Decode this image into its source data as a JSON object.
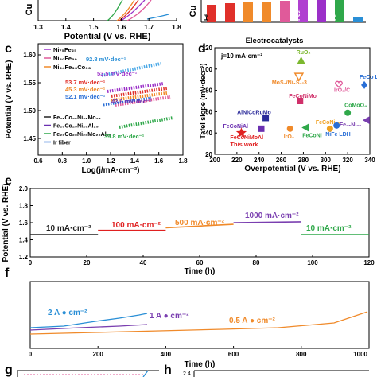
{
  "panels": {
    "a": {
      "ylabel": "Cu",
      "xlabel": "Potential (V vs. RHE)",
      "xticks": [
        "1.3",
        "1.4",
        "1.5",
        "1.6",
        "1.7",
        "1.8"
      ]
    },
    "b": {
      "ylabel": "Cu",
      "bar_labels": [
        "Fe",
        "Fe₂",
        "Fe"
      ]
    },
    "c": {
      "letter": "c",
      "ylabel": "Potential (V vs. RHE)",
      "xlabel": "Log(j/mA·cm⁻²)",
      "yticks": [
        "1.45",
        "1.50",
        "1.55",
        "1.60"
      ],
      "xticks": [
        "0.6",
        "0.8",
        "1.0",
        "1.2",
        "1.4",
        "1.6",
        "1.8"
      ],
      "legend_top": [
        {
          "label": "Ni₇₅Fe₂₅",
          "color": "#9b30c8"
        },
        {
          "label": "Ni₅₀Fe₅₀",
          "color": "#e05a9a"
        },
        {
          "label": "Ni₃₄Fe₃₃Co₃₃",
          "color": "#f08a2a"
        }
      ],
      "legend_bottom": [
        {
          "label": "Fe₂₅Co₂₅Ni₂₅Mo₂₅",
          "color": "#222222"
        },
        {
          "label": "Fe₂₅Co₂₅Ni₂₅Al₂₅",
          "color": "#6a2fb0"
        },
        {
          "label": "Fe₂₀Co₂₀Ni₂₀Mo₂₀Al₂₀",
          "color": "#2fa84a"
        },
        {
          "label": "Ir fiber",
          "color": "#2a6fd6"
        }
      ],
      "slopes": [
        {
          "text": "92.8 mV·dec⁻¹",
          "color": "#2a8fd6"
        },
        {
          "text": "53.5 mV·dec⁻¹",
          "color": "#9b30c8"
        },
        {
          "text": "53.7 mV·dec⁻¹",
          "color": "#e0302a"
        },
        {
          "text": "45.3 mV·dec⁻¹",
          "color": "#f08a2a"
        },
        {
          "text": "52.1 mV·dec⁻¹",
          "color": "#2a6fd6"
        },
        {
          "text": "43.6 mV·dec⁻¹",
          "color": "#6a2fb0"
        },
        {
          "text": "39.8 mV·dec⁻¹",
          "color": "#2fa84a"
        }
      ]
    },
    "d": {
      "letter": "d",
      "title": "Electrocatalysts",
      "condition": "j=10 mA·cm⁻²",
      "ylabel": "Tafel slope (mV·dec⁻¹)",
      "xlabel": "Overpotential (V vs. RHE)",
      "xticks": [
        "200",
        "220",
        "240",
        "260",
        "280",
        "300",
        "320",
        "340"
      ],
      "yticks": [
        "20",
        "40",
        "60",
        "80",
        "100",
        "120"
      ],
      "points": [
        {
          "label": "RuO₂",
          "color": "#7cb82f"
        },
        {
          "label": "MoS₂/Ni₃S₂-3",
          "color": "#f08a2a"
        },
        {
          "label": "IrO₂/C",
          "color": "#e05a9a"
        },
        {
          "label": "FeCo LDH",
          "color": "#2a6fd6"
        },
        {
          "label": "FeCoNiMo",
          "color": "#d0306a"
        },
        {
          "label": "AlNiCoRuMo",
          "color": "#2a2a9a"
        },
        {
          "label": "CoMoO₄",
          "color": "#2fa84a"
        },
        {
          "label": "FeCoNiAl",
          "color": "#6a2fb0"
        },
        {
          "label": "IrO₂",
          "color": "#f08a2a"
        },
        {
          "label": "FeCoNi₇₅",
          "color": "#f0a020"
        },
        {
          "label": "Fe₂₅Ni₇₅",
          "color": "#7a3fb0"
        },
        {
          "label": "FeCoNi",
          "color": "#2fa84a"
        },
        {
          "label": "NiFe LDH",
          "color": "#2a6fd6"
        },
        {
          "label": "FeCoNiMoAl",
          "color": "#e02020"
        },
        {
          "label": "This work",
          "color": "#e02020"
        }
      ]
    },
    "e": {
      "letter": "e",
      "ylabel": "Potential (V vs. RHE)",
      "xlabel": "Time (h)",
      "yticks": [
        "1.2",
        "1.4",
        "1.6",
        "1.8",
        "2.0"
      ],
      "xticks": [
        "0",
        "20",
        "40",
        "60",
        "80",
        "100",
        "120"
      ],
      "series": [
        {
          "label": "10 mA·cm⁻²",
          "color": "#222222"
        },
        {
          "label": "100 mA·cm⁻²",
          "color": "#e02020"
        },
        {
          "label": "500 mA·cm⁻²",
          "color": "#f08a2a"
        },
        {
          "label": "1000 mA·cm⁻²",
          "color": "#7a3fb0"
        },
        {
          "label": "10 mA·cm⁻²",
          "color": "#2fa84a"
        }
      ]
    },
    "f": {
      "letter": "f",
      "xlabel": "Time (h)",
      "xticks": [
        "0",
        "200",
        "400",
        "600",
        "800",
        "1000"
      ],
      "series": [
        {
          "label": "2 A ● cm⁻²",
          "color": "#2a8fd6"
        },
        {
          "label": "1 A ● cm⁻²",
          "color": "#7a3fb0"
        },
        {
          "label": "0.5 A ● cm⁻²",
          "color": "#f08a2a"
        }
      ]
    },
    "g": {
      "letter": "g"
    },
    "h": {
      "letter": "h",
      "ytick": "2.4"
    }
  },
  "chart_data": [
    {
      "type": "line",
      "title": "",
      "xlabel": "Log(j/mA·cm⁻²)",
      "ylabel": "Potential (V vs. RHE)",
      "xlim": [
        0.6,
        1.8
      ],
      "ylim": [
        1.42,
        1.62
      ],
      "series": [
        {
          "name": "Ni₇₅Fe₂₅",
          "x": [
            1.0,
            1.5
          ],
          "y": [
            1.565,
            1.592
          ]
        },
        {
          "name": "Ni₅₀Fe₅₀",
          "x": [
            1.05,
            1.5
          ],
          "y": [
            1.555,
            1.578
          ]
        },
        {
          "name": "Ni₃₄Fe₃₃Co₃₃",
          "x": [
            1.05,
            1.5
          ],
          "y": [
            1.548,
            1.568
          ]
        },
        {
          "name": "Fe₂₅Co₂₅Ni₂₅Mo₂₅",
          "x": [
            1.05,
            1.5
          ],
          "y": [
            1.54,
            1.564
          ]
        },
        {
          "name": "Fe₂₅Co₂₅Ni₂₅Al₂₅",
          "x": [
            1.05,
            1.5
          ],
          "y": [
            1.535,
            1.553
          ]
        },
        {
          "name": "Fe₂₀Co₂₀Ni₂₀Mo₂₀Al₂₀",
          "x": [
            1.1,
            1.55
          ],
          "y": [
            1.475,
            1.49
          ]
        },
        {
          "name": "Ir fiber",
          "x": [
            1.05,
            1.5
          ],
          "y": [
            1.565,
            1.6
          ]
        }
      ]
    },
    {
      "type": "scatter",
      "title": "Electrocatalysts",
      "xlabel": "Overpotential (V vs. RHE)",
      "ylabel": "Tafel slope (mV·dec⁻¹)",
      "xlim": [
        200,
        340
      ],
      "ylim": [
        20,
        120
      ],
      "points": [
        {
          "label": "RuO₂",
          "x": 278,
          "y": 108
        },
        {
          "label": "MoS₂/Ni₃S₂-3",
          "x": 276,
          "y": 93
        },
        {
          "label": "IrO₂/C",
          "x": 312,
          "y": 86
        },
        {
          "label": "FeCo LDH",
          "x": 335,
          "y": 85
        },
        {
          "label": "FeCoNiMo",
          "x": 277,
          "y": 70
        },
        {
          "label": "AlNiCoRuMo",
          "x": 246,
          "y": 54
        },
        {
          "label": "CoMoO₄",
          "x": 320,
          "y": 59
        },
        {
          "label": "FeCoNiAl",
          "x": 242,
          "y": 44
        },
        {
          "label": "IrO₂",
          "x": 268,
          "y": 44
        },
        {
          "label": "FeCoNi₇₅",
          "x": 304,
          "y": 44
        },
        {
          "label": "Fe₂₅Ni₇₅",
          "x": 337,
          "y": 52
        },
        {
          "label": "FeCoNi",
          "x": 282,
          "y": 45
        },
        {
          "label": "NiFe LDH",
          "x": 310,
          "y": 47
        },
        {
          "label": "FeCoNiMoAl",
          "x": 224,
          "y": 40
        }
      ]
    },
    {
      "type": "line",
      "title": "",
      "xlabel": "Time (h)",
      "ylabel": "Potential (V vs. RHE)",
      "xlim": [
        0,
        120
      ],
      "ylim": [
        1.2,
        2.0
      ],
      "series": [
        {
          "name": "10 mA·cm⁻²",
          "x": [
            0,
            24
          ],
          "y": [
            1.46,
            1.46
          ]
        },
        {
          "name": "100 mA·cm⁻²",
          "x": [
            24,
            48
          ],
          "y": [
            1.51,
            1.51
          ]
        },
        {
          "name": "500 mA·cm⁻²",
          "x": [
            48,
            72
          ],
          "y": [
            1.54,
            1.58
          ]
        },
        {
          "name": "1000 mA·cm⁻²",
          "x": [
            72,
            96
          ],
          "y": [
            1.6,
            1.61
          ]
        },
        {
          "name": "10 mA·cm⁻²",
          "x": [
            96,
            120
          ],
          "y": [
            1.46,
            1.46
          ]
        }
      ]
    },
    {
      "type": "line",
      "title": "",
      "xlabel": "Time (h)",
      "ylabel": "",
      "xlim": [
        0,
        1000
      ],
      "series": [
        {
          "name": "2 A ● cm⁻²",
          "x": [
            0,
            100,
            200,
            330
          ],
          "y": [
            1.72,
            1.8,
            1.9,
            2.0
          ]
        },
        {
          "name": "1 A ● cm⁻²",
          "x": [
            0,
            150,
            330
          ],
          "y": [
            1.65,
            1.7,
            1.78
          ]
        },
        {
          "name": "0.5 A ● cm⁻²",
          "x": [
            0,
            300,
            600,
            900,
            1000
          ],
          "y": [
            1.55,
            1.6,
            1.68,
            1.8,
            1.9
          ]
        }
      ]
    }
  ]
}
